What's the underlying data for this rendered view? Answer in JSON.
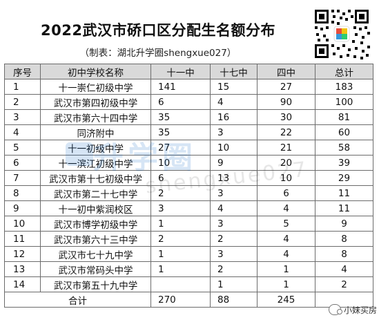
{
  "header": {
    "title": "2022武汉市硚口区分配生名额分布",
    "subtitle": "（制表：湖北升学圈shengxue027）"
  },
  "table": {
    "headers": [
      "序号",
      "初中学校名称",
      "十一中",
      "十七中",
      "四中",
      "总计"
    ],
    "rows": [
      [
        "1",
        "十一崇仁初级中学",
        "141",
        "15",
        "27",
        "183"
      ],
      [
        "2",
        "武汉市第四初级中学",
        "6",
        "4",
        "90",
        "100"
      ],
      [
        "3",
        "武汉市第六十四中学",
        "35",
        "16",
        "30",
        "81"
      ],
      [
        "4",
        "同济附中",
        "35",
        "3",
        "22",
        "60"
      ],
      [
        "5",
        "十一初级中学",
        "27",
        "10",
        "21",
        "58"
      ],
      [
        "6",
        "十一滨江初级中学",
        "10",
        "9",
        "20",
        "39"
      ],
      [
        "7",
        "武汉市第十七初级中学",
        "6",
        "13",
        "10",
        "29"
      ],
      [
        "8",
        "武汉市第二十七中学",
        "2",
        "3",
        "6",
        "11"
      ],
      [
        "9",
        "十一初中紫润校区",
        "3",
        "4",
        "4",
        "11"
      ],
      [
        "10",
        "武汉市博学初级中学",
        "1",
        "3",
        "5",
        "9"
      ],
      [
        "11",
        "武汉市第六十三中学",
        "2",
        "2",
        "4",
        "8"
      ],
      [
        "12",
        "武汉市七十九中学",
        "1",
        "3",
        "4",
        "8"
      ],
      [
        "13",
        "武汉市常码头中学",
        "1",
        "2",
        "1",
        "4"
      ],
      [
        "14",
        "武汉市第五十九中学",
        "",
        "1",
        "1",
        "2"
      ]
    ],
    "total_row": [
      "合计",
      "270",
      "88",
      "245",
      ""
    ]
  },
  "watermark": {
    "brand_text": "升学圈",
    "domain_text": "shengxue027"
  },
  "badge": {
    "label": "小妹买房"
  },
  "colors": {
    "header_bg": "#d9d9d9",
    "border": "#6b6b6b",
    "watermark_blue": "#1e6ec8"
  }
}
